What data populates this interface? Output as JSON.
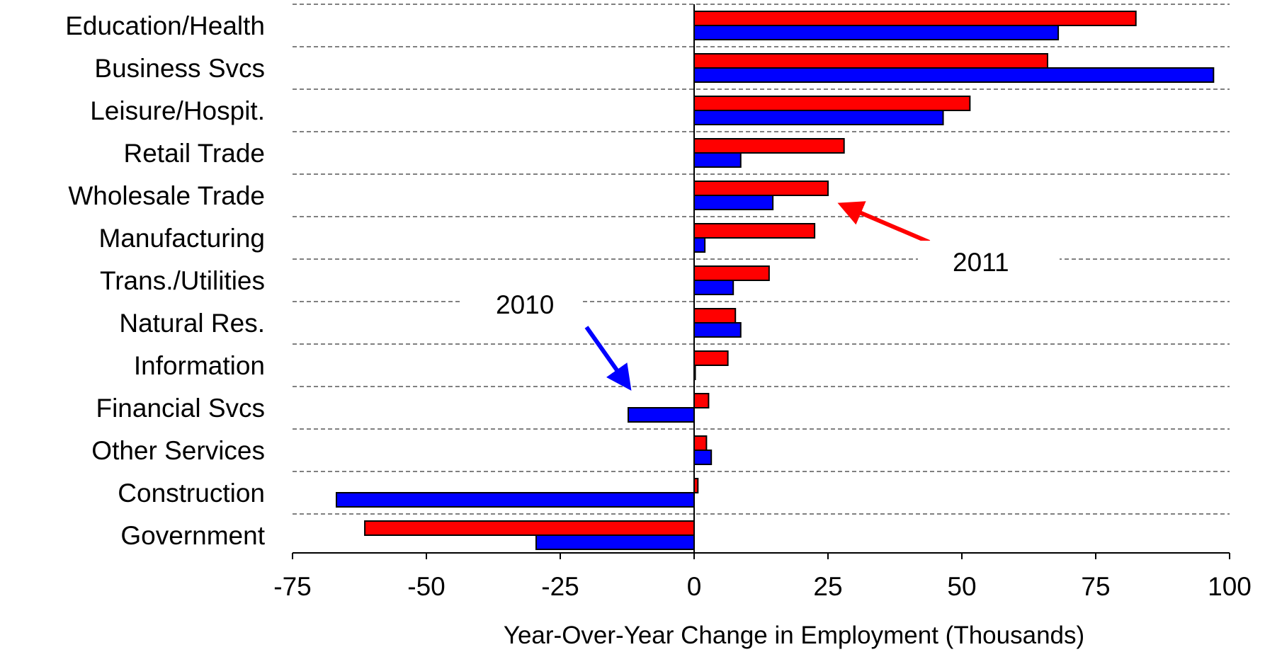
{
  "chart_data": {
    "type": "bar",
    "orientation": "horizontal",
    "categories": [
      "Education/Health",
      "Business Svcs",
      "Leisure/Hospit.",
      "Retail Trade",
      "Wholesale Trade",
      "Manufacturing",
      "Trans./Utilities",
      "Natural Res.",
      "Information",
      "Financial Svcs",
      "Other Services",
      "Construction",
      "Government"
    ],
    "series": [
      {
        "name": "2011",
        "color": "#ff0000",
        "values": [
          82.5,
          66,
          51.5,
          28,
          25,
          22.5,
          14,
          7.7,
          6.3,
          2.7,
          2.3,
          0.7,
          -61.5
        ]
      },
      {
        "name": "2010",
        "color": "#0000ff",
        "values": [
          68,
          97,
          46.5,
          8.7,
          14.7,
          2,
          7.3,
          8.7,
          0.2,
          -12.3,
          3.2,
          -66.8,
          -29.5
        ]
      }
    ],
    "xlim": [
      -75,
      100
    ],
    "xticks": [
      "-75",
      "-50",
      "-25",
      "0",
      "25",
      "50",
      "75",
      "100"
    ],
    "xlabel": "Year-Over-Year Change in Employment (Thousands)",
    "grid": "dashed horizontal between categories",
    "annotations": [
      {
        "text": "2011",
        "points_to": "Wholesale Trade 2011 bar",
        "color": "#ff0000"
      },
      {
        "text": "2010",
        "points_to": "Financial Svcs 2010 bar",
        "color": "#0000ff"
      }
    ]
  }
}
